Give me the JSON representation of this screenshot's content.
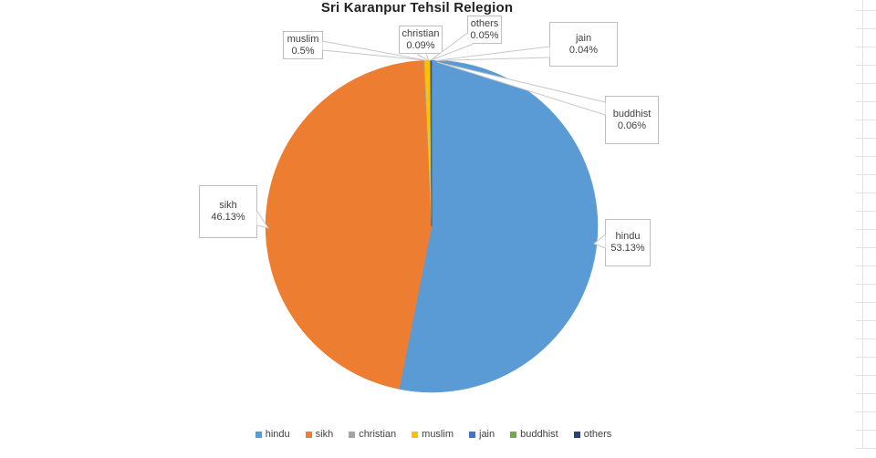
{
  "chart_data": {
    "type": "pie",
    "title": "Sri Karanpur Tehsil Relegion",
    "categories": [
      "hindu",
      "sikh",
      "christian",
      "muslim",
      "jain",
      "buddhist",
      "others"
    ],
    "values": [
      53.13,
      46.13,
      0.09,
      0.5,
      0.04,
      0.06,
      0.05
    ],
    "value_labels": [
      "53.13%",
      "46.13%",
      "0.09%",
      "0.5%",
      "0.04%",
      "0.06%",
      "0.05%"
    ],
    "unit": "%",
    "colors": [
      "#5b9bd5",
      "#ed7d31",
      "#a5a5a5",
      "#ffc000",
      "#4472c4",
      "#70ad47",
      "#264478"
    ],
    "start_angle_deg": 0,
    "direction": "clockwise",
    "legend_position": "bottom",
    "callout_border_color": "#bfbfbf",
    "leader_line_color": "#c8c8c8",
    "grid_color": "#e3e3e3",
    "title_color": "#222222",
    "label_text_color": "#404040"
  }
}
